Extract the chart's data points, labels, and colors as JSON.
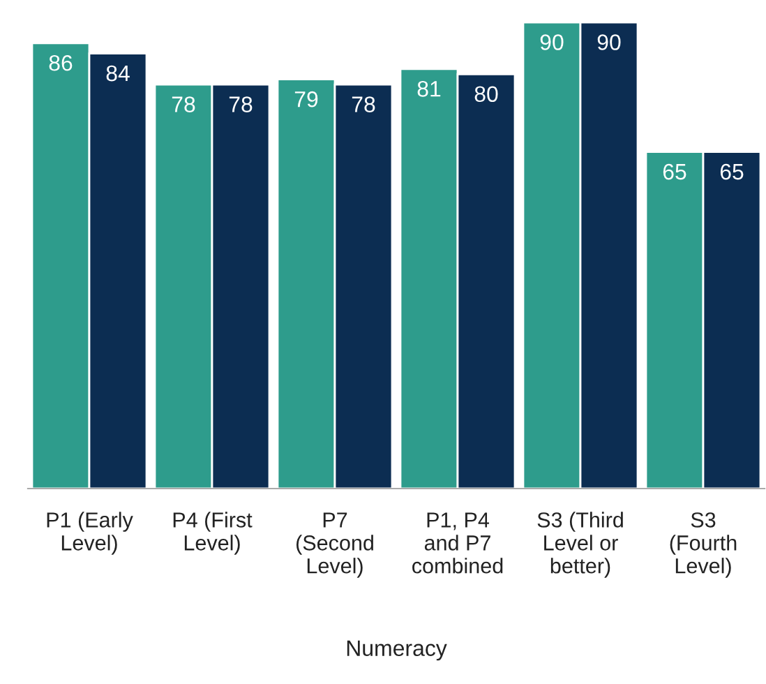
{
  "chart_data": {
    "type": "bar",
    "xlabel": "Numeracy",
    "categories": [
      "P1 (Early\nLevel)",
      "P4 (First\nLevel)",
      "P7\n(Second\nLevel)",
      "P1, P4\nand P7\ncombined",
      "S3 (Third\nLevel or\nbetter)",
      "S3\n(Fourth\nLevel)"
    ],
    "series": [
      {
        "color": "#2e9c8c",
        "values": [
          86,
          78,
          79,
          81,
          90,
          65
        ]
      },
      {
        "color": "#0c2d52",
        "values": [
          84,
          78,
          78,
          80,
          90,
          65
        ]
      }
    ],
    "data_labels": true
  }
}
